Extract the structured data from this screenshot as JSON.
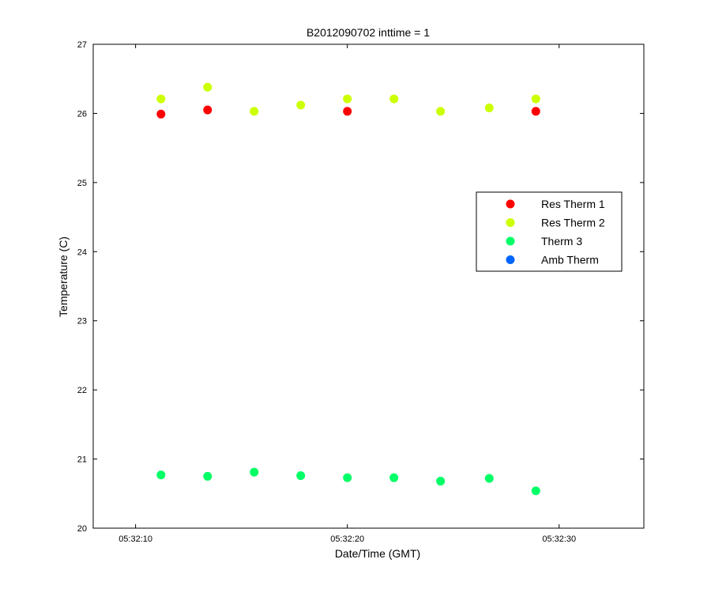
{
  "chart_data": {
    "type": "scatter",
    "title": "B2012090702 inttime = 1",
    "xlabel": "Date/Time (GMT)",
    "ylabel": "Temperature (C)",
    "xlim": [
      "05:32:08",
      "05:32:34"
    ],
    "ylim": [
      20,
      27
    ],
    "xticks": [
      "05:32:10",
      "05:32:20",
      "05:32:30"
    ],
    "yticks": [
      20,
      21,
      22,
      23,
      24,
      25,
      26,
      27
    ],
    "grid": false,
    "legend_position": "right",
    "series": [
      {
        "name": "Res Therm 1",
        "color": "#ff0000",
        "x": [
          "05:32:11.2",
          "05:32:13.4",
          "05:32:20.0",
          "05:32:28.9"
        ],
        "y": [
          25.99,
          26.05,
          26.03,
          26.03
        ]
      },
      {
        "name": "Res Therm 2",
        "color": "#ccff00",
        "x": [
          "05:32:11.2",
          "05:32:13.4",
          "05:32:15.6",
          "05:32:17.8",
          "05:32:20.0",
          "05:32:22.2",
          "05:32:24.4",
          "05:32:26.7",
          "05:32:28.9"
        ],
        "y": [
          26.21,
          26.38,
          26.03,
          26.12,
          26.21,
          26.21,
          26.03,
          26.08,
          26.21
        ]
      },
      {
        "name": "Therm 3",
        "color": "#00ff66",
        "x": [
          "05:32:11.2",
          "05:32:13.4",
          "05:32:15.6",
          "05:32:17.8",
          "05:32:20.0",
          "05:32:22.2",
          "05:32:24.4",
          "05:32:26.7",
          "05:32:28.9"
        ],
        "y": [
          20.77,
          20.75,
          20.81,
          20.76,
          20.73,
          20.73,
          20.68,
          20.72,
          20.54
        ]
      },
      {
        "name": "Amb Therm",
        "color": "#0066ff",
        "x": [],
        "y": []
      }
    ]
  }
}
